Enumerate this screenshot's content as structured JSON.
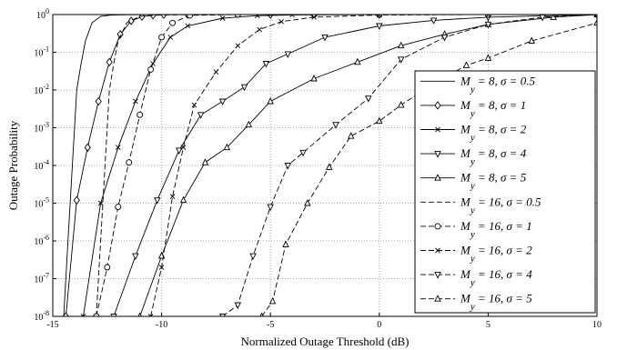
{
  "chart_data": {
    "type": "line",
    "title": "",
    "xlabel": "Normalized Outage Threshold (dB)",
    "ylabel": "Outage Probability",
    "xlim": [
      -15,
      10
    ],
    "ylim": [
      1e-08,
      1
    ],
    "yscale": "log",
    "x_ticks": [
      -15,
      -10,
      -5,
      0,
      5,
      10
    ],
    "x_tick_labels": [
      "-15",
      "-10",
      "-5",
      "0",
      "5",
      "10"
    ],
    "y_ticks": [
      1e-08,
      1e-07,
      1e-06,
      1e-05,
      0.0001,
      0.001,
      0.01,
      0.1,
      1
    ],
    "y_tick_labels": [
      {
        "base": "10",
        "exp": "-8"
      },
      {
        "base": "10",
        "exp": "-7"
      },
      {
        "base": "10",
        "exp": "-6"
      },
      {
        "base": "10",
        "exp": "-5"
      },
      {
        "base": "10",
        "exp": "-4"
      },
      {
        "base": "10",
        "exp": "-3"
      },
      {
        "base": "10",
        "exp": "-2"
      },
      {
        "base": "10",
        "exp": "-1"
      },
      {
        "base": "10",
        "exp": "0"
      }
    ],
    "grid": true,
    "legend_position": "right",
    "series": [
      {
        "name": "M_y = 8, σ = 0.5",
        "legend": {
          "pre": "M",
          "sub": "y",
          "post": " = 8, σ = 0.5"
        },
        "dash": "solid",
        "marker": "none",
        "x": [
          -14.5,
          -14.3,
          -14.1,
          -13.9,
          -13.7,
          -13.5,
          -13.2,
          -12.8,
          -12.3,
          -11.5,
          -10.5,
          -8,
          -5,
          0,
          5,
          10
        ],
        "y": [
          1e-08,
          1e-06,
          0.0001,
          0.01,
          0.05,
          0.2,
          0.6,
          0.9,
          0.97,
          0.99,
          1,
          1,
          1,
          1,
          1,
          1
        ]
      },
      {
        "name": "M_y = 8, σ = 1",
        "legend": {
          "pre": "M",
          "sub": "y",
          "post": " = 8, σ = 1"
        },
        "dash": "solid",
        "marker": "diamond",
        "x": [
          -14.4,
          -13.9,
          -13.4,
          -12.9,
          -12.4,
          -11.9,
          -11.4,
          -10.9,
          -10.4,
          -9.9,
          -8.8,
          -5,
          0,
          5,
          10
        ],
        "y": [
          1e-08,
          1.2e-05,
          0.0003,
          0.005,
          0.055,
          0.3,
          0.68,
          0.88,
          0.96,
          0.99,
          1,
          1,
          1,
          1,
          1
        ]
      },
      {
        "name": "M_y = 8, σ = 2",
        "legend": {
          "pre": "M",
          "sub": "y",
          "post": " = 8, σ = 2"
        },
        "dash": "solid",
        "marker": "x",
        "x": [
          -13.6,
          -12.8,
          -12.0,
          -11.2,
          -10.4,
          -9.6,
          -8.8,
          -7.2,
          -5.6,
          -4.0,
          0,
          5,
          10
        ],
        "y": [
          1e-08,
          1e-05,
          0.0003,
          0.005,
          0.05,
          0.25,
          0.5,
          0.8,
          0.93,
          0.98,
          1,
          1,
          1
        ]
      },
      {
        "name": "M_y = 8, σ = 4",
        "legend": {
          "pre": "M",
          "sub": "y",
          "post": " = 8, σ = 4"
        },
        "dash": "solid",
        "marker": "triangle-down",
        "x": [
          -12.2,
          -11.2,
          -10.2,
          -9.2,
          -8.2,
          -7.2,
          -6.2,
          -5.2,
          -4.2,
          -2.5,
          0,
          2.5,
          5,
          10
        ],
        "y": [
          1e-08,
          4e-07,
          1.2e-05,
          0.00025,
          0.0022,
          0.005,
          0.012,
          0.05,
          0.09,
          0.25,
          0.5,
          0.7,
          0.85,
          1
        ]
      },
      {
        "name": "M_y = 8, σ = 5",
        "legend": {
          "pre": "M",
          "sub": "y",
          "post": " = 8, σ = 5"
        },
        "dash": "solid",
        "marker": "triangle-up",
        "x": [
          -11.0,
          -10.0,
          -9.0,
          -8.0,
          -7.0,
          -6.0,
          -5.0,
          -3.0,
          -1.0,
          1.0,
          3.0,
          5.0,
          8.0,
          10
        ],
        "y": [
          1e-08,
          4e-07,
          1.2e-05,
          0.00012,
          0.0003,
          0.0012,
          0.005,
          0.02,
          0.055,
          0.15,
          0.3,
          0.55,
          0.85,
          1
        ]
      },
      {
        "name": "M_y = 16, σ = 0.5",
        "legend": {
          "pre": "M",
          "sub": "y",
          "post": " = 16, σ = 0.5"
        },
        "dash": "dashed",
        "marker": "none",
        "x": [
          -13.0,
          -12.8,
          -12.6,
          -12.4,
          -12.2,
          -12.0,
          -11.6,
          -11.0,
          -10.0,
          -8,
          -5,
          0,
          5,
          10
        ],
        "y": [
          1e-08,
          1e-06,
          0.0001,
          0.01,
          0.05,
          0.2,
          0.6,
          0.9,
          0.98,
          1,
          1,
          1,
          1,
          1
        ]
      },
      {
        "name": "M_y = 16, σ = 1",
        "legend": {
          "pre": "M",
          "sub": "y",
          "post": " = 16, σ = 1"
        },
        "dash": "dashed",
        "marker": "circle",
        "x": [
          -13.0,
          -12.5,
          -12.0,
          -11.5,
          -11.0,
          -10.5,
          -10.0,
          -9.5,
          -8.7,
          -6.5,
          -3,
          0,
          5,
          10
        ],
        "y": [
          1e-08,
          2e-07,
          8e-06,
          0.00012,
          0.0022,
          0.035,
          0.25,
          0.6,
          0.95,
          1,
          1,
          1,
          1,
          1
        ]
      },
      {
        "name": "M_y = 16, σ = 2",
        "legend": {
          "pre": "M",
          "sub": "y",
          "post": " = 16, σ = 2"
        },
        "dash": "dashed",
        "marker": "x",
        "x": [
          -10.5,
          -10.0,
          -9.5,
          -9.0,
          -8.5,
          -7.5,
          -6.5,
          -5.5,
          -4.5,
          -3,
          0,
          5,
          10
        ],
        "y": [
          1e-08,
          2e-07,
          1.5e-05,
          0.0003,
          0.004,
          0.03,
          0.15,
          0.4,
          0.65,
          0.85,
          0.97,
          1,
          1
        ]
      },
      {
        "name": "M_y = 16, σ = 4",
        "legend": {
          "pre": "M",
          "sub": "y",
          "post": " = 16, σ = 4"
        },
        "dash": "dashed",
        "marker": "triangle-down",
        "x": [
          -7.2,
          -6.5,
          -5.8,
          -5.0,
          -4.2,
          -3.5,
          -2.0,
          -0.5,
          1.0,
          3.0,
          5.0,
          7.5,
          10
        ],
        "y": [
          1e-08,
          2e-08,
          4e-07,
          8e-06,
          0.0001,
          0.00022,
          0.0012,
          0.006,
          0.065,
          0.25,
          0.55,
          0.85,
          1
        ]
      },
      {
        "name": "M_y = 16, σ = 5",
        "legend": {
          "pre": "M",
          "sub": "y",
          "post": " = 16, σ = 5"
        },
        "dash": "dashed",
        "marker": "triangle-up",
        "x": [
          -5.4,
          -4.9,
          -4.3,
          -3.3,
          -2.3,
          -1.3,
          0.0,
          1.0,
          2.5,
          4.0,
          5.0,
          7.0,
          10
        ],
        "y": [
          1e-08,
          2.5e-08,
          8e-07,
          1e-05,
          9e-05,
          0.0006,
          0.0015,
          0.004,
          0.015,
          0.045,
          0.07,
          0.2,
          0.6
        ]
      }
    ]
  }
}
